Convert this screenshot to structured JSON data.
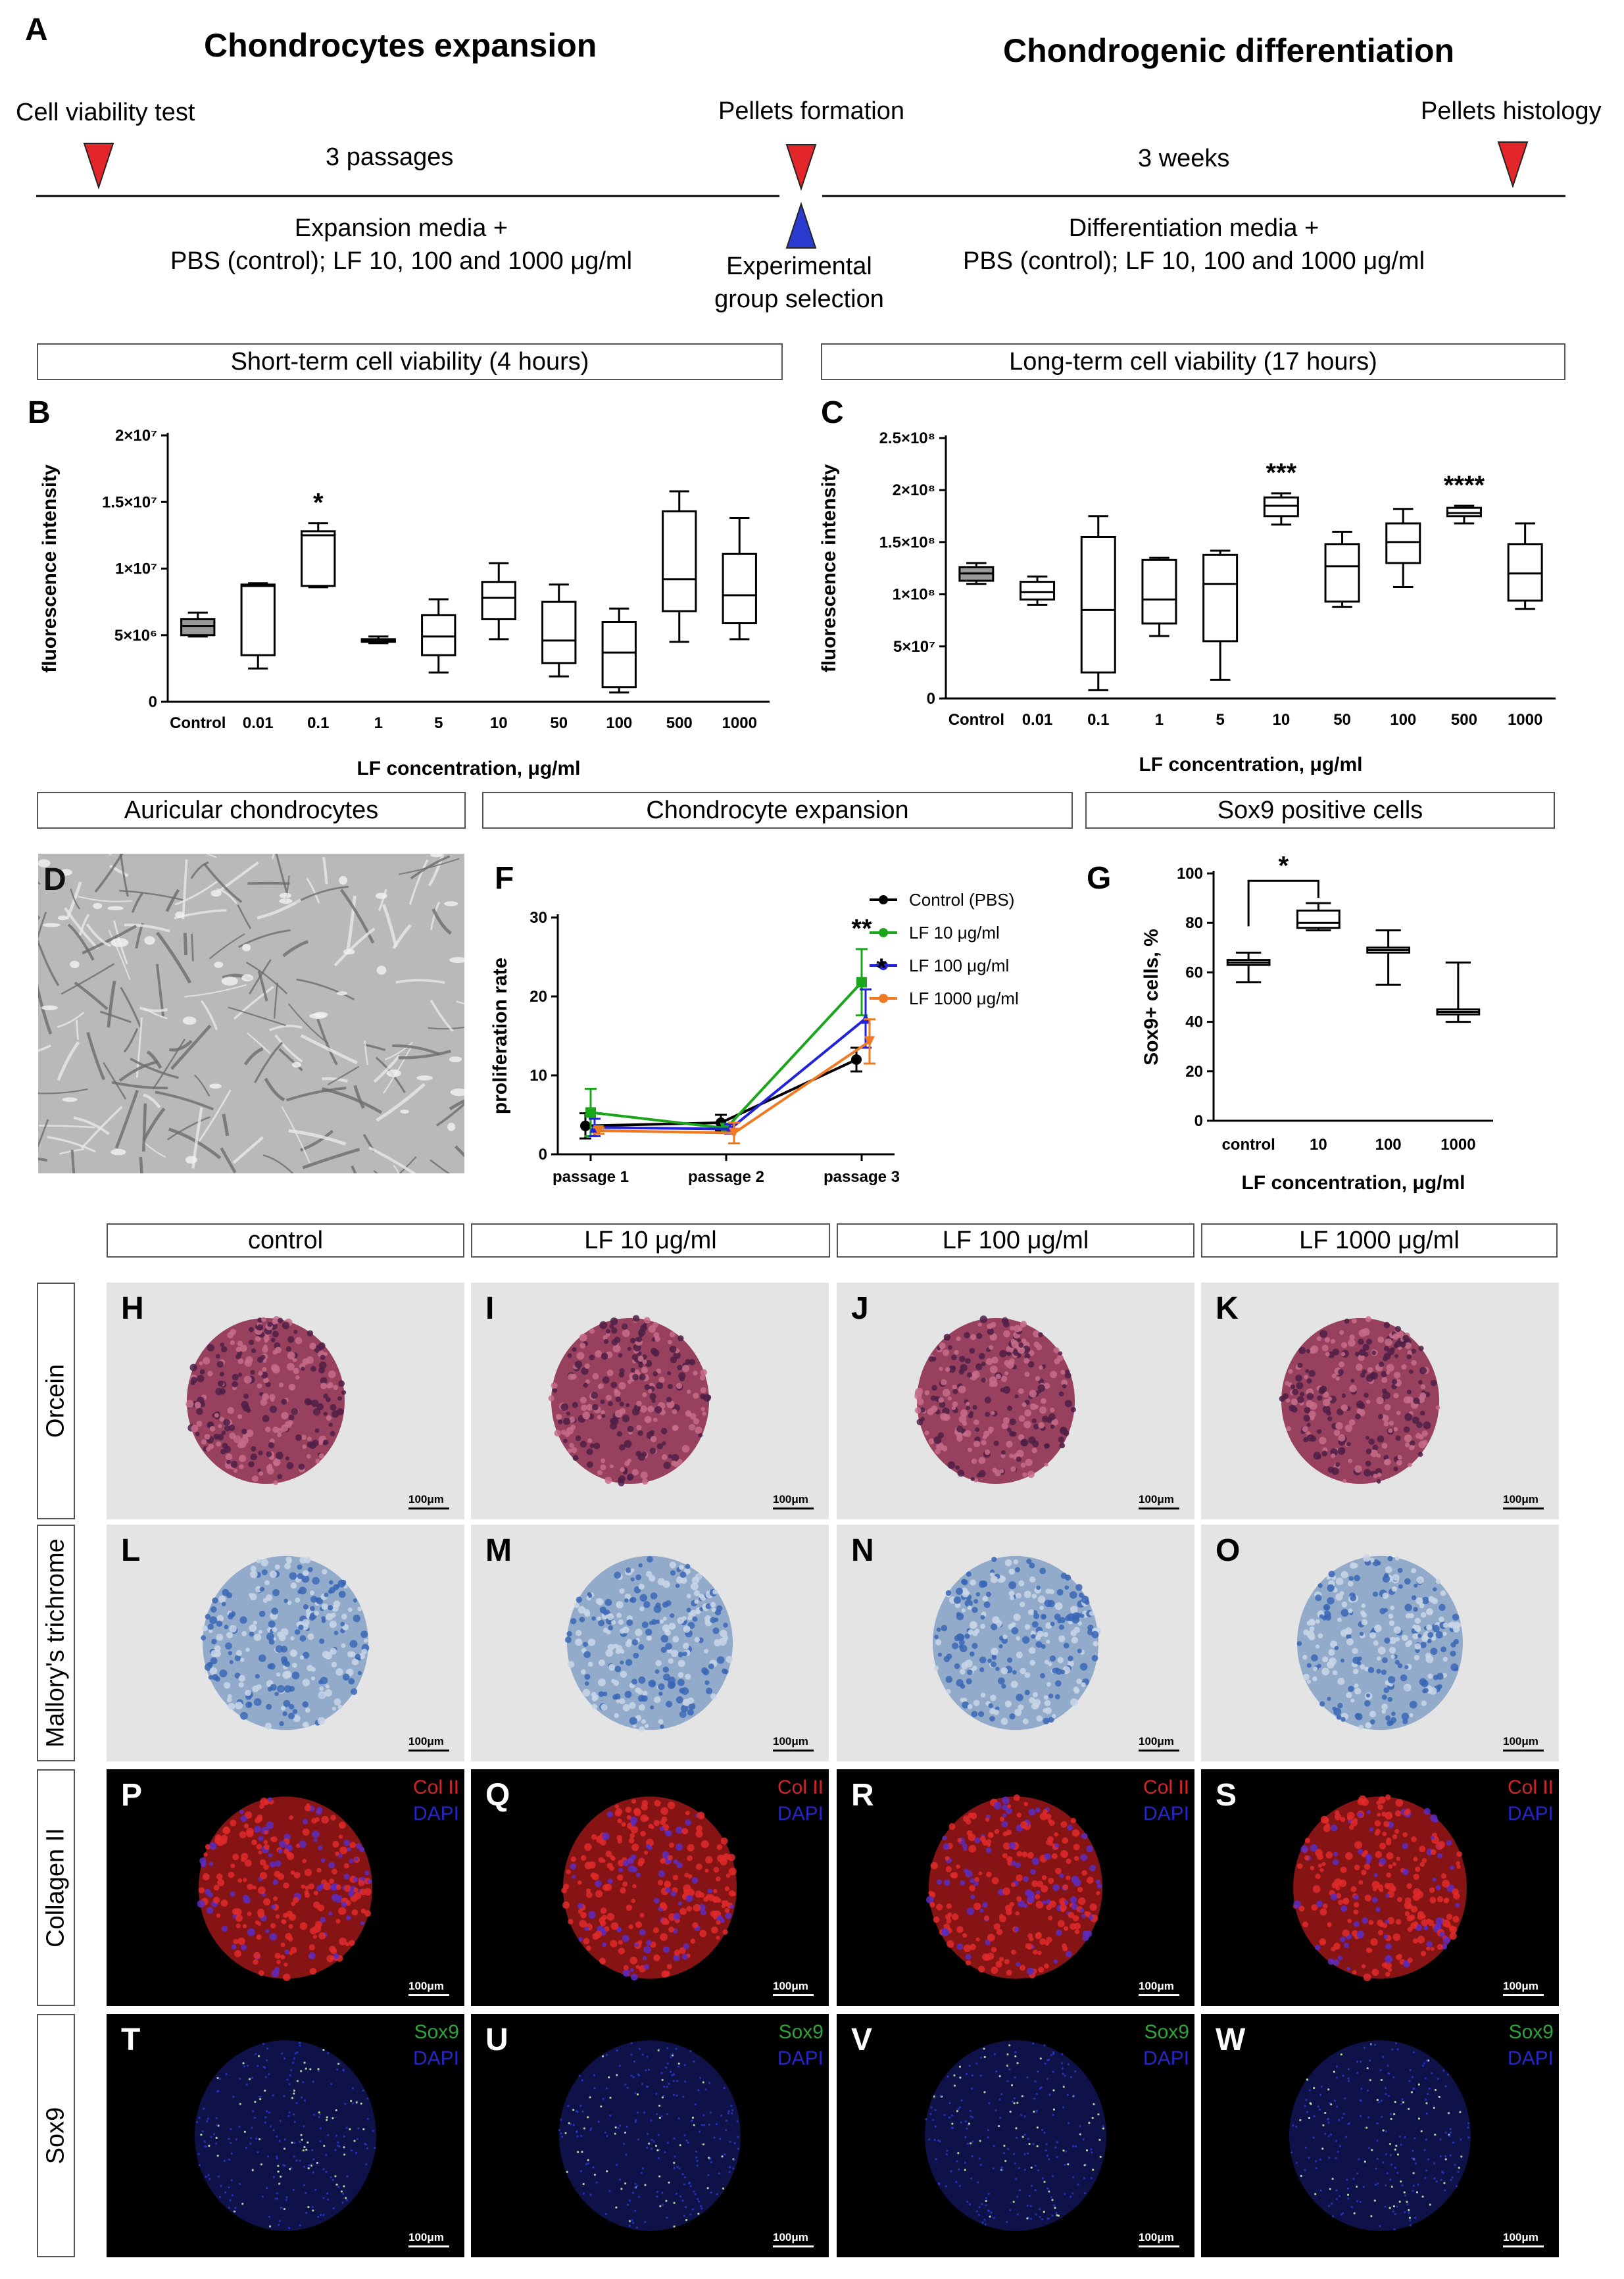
{
  "panelA": {
    "letter": "A",
    "title_left": "Chondrocytes expansion",
    "title_right": "Chondrogenic differentiation",
    "viability_test": "Cell viability test",
    "passages": "3 passages",
    "pellets_formation": "Pellets formation",
    "weeks": "3 weeks",
    "pellets_histology": "Pellets histology",
    "expansion_media_1": "Expansion media +",
    "expansion_media_2": "PBS (control); LF 10, 100 and 1000 μg/ml",
    "experimental_1": "Experimental",
    "experimental_2": "group selection",
    "diff_media_1": "Differentiation media +",
    "diff_media_2": "PBS (control); LF 10, 100 and 1000 μg/ml",
    "colors": {
      "red_triangle": "#e3262a",
      "blue_triangle": "#2a3bd0"
    }
  },
  "section_boxes": {
    "short_term": "Short-term cell viability (4 hours)",
    "long_term": "Long-term cell viability (17 hours)",
    "auricular": "Auricular chondrocytes",
    "expansion": "Chondrocyte expansion",
    "sox9_positive": "Sox9 positive cells"
  },
  "chart_data": [
    {
      "panel": "B",
      "type": "boxplot",
      "xlabel": "LF concentration, μg/ml",
      "ylabel": "fluorescence intensity",
      "ylim": [
        0,
        20000000
      ],
      "yticks": [
        "0",
        "5×10⁶",
        "1×10⁷",
        "1.5×10⁷",
        "2×10⁷"
      ],
      "yticks_values": [
        0,
        5000000,
        10000000,
        15000000,
        20000000
      ],
      "categories": [
        "Control",
        "0.01",
        "0.1",
        "1",
        "5",
        "10",
        "50",
        "100",
        "500",
        "1000"
      ],
      "boxes": [
        {
          "min": 4900000,
          "q1": 5000000,
          "median": 5700000,
          "q3": 6200000,
          "max": 6700000,
          "filled": true,
          "annotation": ""
        },
        {
          "min": 2500000,
          "q1": 3500000,
          "median": 8700000,
          "q3": 8800000,
          "max": 8900000,
          "filled": false,
          "annotation": ""
        },
        {
          "min": 8600000,
          "q1": 8700000,
          "median": 12500000,
          "q3": 12800000,
          "max": 13400000,
          "filled": false,
          "annotation": "*"
        },
        {
          "min": 4400000,
          "q1": 4500000,
          "median": 4600000,
          "q3": 4700000,
          "max": 4900000,
          "filled": false,
          "annotation": ""
        },
        {
          "min": 2200000,
          "q1": 3500000,
          "median": 4900000,
          "q3": 6500000,
          "max": 7700000,
          "filled": false,
          "annotation": ""
        },
        {
          "min": 4700000,
          "q1": 6200000,
          "median": 7800000,
          "q3": 9000000,
          "max": 10400000,
          "filled": false,
          "annotation": ""
        },
        {
          "min": 1900000,
          "q1": 2900000,
          "median": 4600000,
          "q3": 7500000,
          "max": 8800000,
          "filled": false,
          "annotation": ""
        },
        {
          "min": 700000,
          "q1": 1100000,
          "median": 3700000,
          "q3": 6000000,
          "max": 7000000,
          "filled": false,
          "annotation": ""
        },
        {
          "min": 4500000,
          "q1": 6800000,
          "median": 9200000,
          "q3": 14300000,
          "max": 15800000,
          "filled": false,
          "annotation": ""
        },
        {
          "min": 4700000,
          "q1": 5900000,
          "median": 8000000,
          "q3": 11100000,
          "max": 13800000,
          "filled": false,
          "annotation": ""
        }
      ]
    },
    {
      "panel": "C",
      "type": "boxplot",
      "xlabel": "LF concentration, μg/ml",
      "ylabel": "fluorescence intensity",
      "ylim": [
        0,
        250000000
      ],
      "yticks": [
        "0",
        "5×10⁷",
        "1×10⁸",
        "1.5×10⁸",
        "2×10⁸",
        "2.5×10⁸"
      ],
      "yticks_values": [
        0,
        50000000,
        100000000,
        150000000,
        200000000,
        250000000
      ],
      "categories": [
        "Control",
        "0.01",
        "0.1",
        "1",
        "5",
        "10",
        "50",
        "100",
        "500",
        "1000"
      ],
      "boxes": [
        {
          "min": 110000000,
          "q1": 113000000,
          "median": 120000000,
          "q3": 126000000,
          "max": 130000000,
          "filled": true,
          "annotation": ""
        },
        {
          "min": 90000000,
          "q1": 95000000,
          "median": 102000000,
          "q3": 112000000,
          "max": 117000000,
          "filled": false,
          "annotation": ""
        },
        {
          "min": 8000000,
          "q1": 25000000,
          "median": 85000000,
          "q3": 155000000,
          "max": 175000000,
          "filled": false,
          "annotation": ""
        },
        {
          "min": 60000000,
          "q1": 72000000,
          "median": 95000000,
          "q3": 133000000,
          "max": 135000000,
          "filled": false,
          "annotation": ""
        },
        {
          "min": 18000000,
          "q1": 55000000,
          "median": 110000000,
          "q3": 138000000,
          "max": 142000000,
          "filled": false,
          "annotation": ""
        },
        {
          "min": 167000000,
          "q1": 175000000,
          "median": 185000000,
          "q3": 193000000,
          "max": 197000000,
          "filled": false,
          "annotation": "***"
        },
        {
          "min": 88000000,
          "q1": 93000000,
          "median": 127000000,
          "q3": 148000000,
          "max": 160000000,
          "filled": false,
          "annotation": ""
        },
        {
          "min": 107000000,
          "q1": 130000000,
          "median": 150000000,
          "q3": 168000000,
          "max": 182000000,
          "filled": false,
          "annotation": ""
        },
        {
          "min": 168000000,
          "q1": 175000000,
          "median": 178000000,
          "q3": 183000000,
          "max": 185000000,
          "filled": false,
          "annotation": "****"
        },
        {
          "min": 86000000,
          "q1": 94000000,
          "median": 120000000,
          "q3": 148000000,
          "max": 168000000,
          "filled": false,
          "annotation": ""
        }
      ]
    },
    {
      "panel": "F",
      "type": "line",
      "ylabel": "proliferation rate",
      "ylim": [
        0,
        30
      ],
      "yticks": [
        0,
        10,
        20,
        30
      ],
      "categories": [
        "passage 1",
        "passage 2",
        "passage 3"
      ],
      "series": [
        {
          "name": "Control (PBS)",
          "color": "#000000",
          "marker": "circle",
          "values": [
            3.6,
            4.0,
            12.0
          ],
          "err": [
            1.6,
            1.0,
            1.5
          ]
        },
        {
          "name": "LF 10  μg/ml",
          "color": "#1aa51a",
          "marker": "square",
          "values": [
            5.3,
            3.3,
            21.8
          ],
          "err": [
            3.0,
            0.6,
            4.2
          ]
        },
        {
          "name": "LF 100  μg/ml",
          "color": "#2222dd",
          "marker": "triangle-up",
          "values": [
            3.4,
            3.2,
            17.2
          ],
          "err": [
            1.1,
            0.6,
            3.7
          ]
        },
        {
          "name": "LF 1000  μg/ml",
          "color": "#f07a22",
          "marker": "triangle-down",
          "values": [
            3.0,
            2.7,
            14.3
          ],
          "err": [
            0.4,
            1.3,
            2.8
          ]
        }
      ],
      "annotations": [
        {
          "text": "**",
          "category": "passage 3",
          "y": 27.5
        },
        {
          "text": "*",
          "category": "passage 3",
          "y": 22.5
        }
      ]
    },
    {
      "panel": "G",
      "type": "boxplot",
      "xlabel": "LF concentration, μg/ml",
      "ylabel": "Sox9+ cells, %",
      "ylim": [
        0,
        100
      ],
      "yticks": [
        0,
        20,
        40,
        60,
        80,
        100
      ],
      "categories": [
        "control",
        "10",
        "100",
        "1000"
      ],
      "boxes": [
        {
          "min": 56,
          "q1": 63,
          "median": 64,
          "q3": 65,
          "max": 68,
          "filled": false
        },
        {
          "min": 77,
          "q1": 78,
          "median": 80,
          "q3": 85,
          "max": 88,
          "filled": false
        },
        {
          "min": 55,
          "q1": 68,
          "median": 69,
          "q3": 70,
          "max": 77,
          "filled": false
        },
        {
          "min": 40,
          "q1": 43,
          "median": 44,
          "q3": 45,
          "max": 64,
          "filled": false
        }
      ],
      "significance": {
        "between": [
          "control",
          "10"
        ],
        "text": "*"
      }
    }
  ],
  "panel_letters": {
    "B": "B",
    "C": "C",
    "D": "D",
    "F": "F",
    "G": "G"
  },
  "histology": {
    "columns": [
      "control",
      "LF 10 μg/ml",
      "LF 100 μg/ml",
      "LF 1000 μg/ml"
    ],
    "rows": [
      {
        "label": "Orcein",
        "letters": [
          "H",
          "I",
          "J",
          "K"
        ],
        "legend": [
          "",
          ""
        ]
      },
      {
        "label": "Mallory's trichrome",
        "letters": [
          "L",
          "M",
          "N",
          "O"
        ],
        "legend": [
          "",
          ""
        ]
      },
      {
        "label": "Collagen II",
        "letters": [
          "P",
          "Q",
          "R",
          "S"
        ],
        "legend": [
          "Col II",
          "DAPI"
        ]
      },
      {
        "label": "Sox9",
        "letters": [
          "T",
          "U",
          "V",
          "W"
        ],
        "legend": [
          "Sox9",
          "DAPI"
        ]
      }
    ],
    "scale_bar": "100μm"
  }
}
